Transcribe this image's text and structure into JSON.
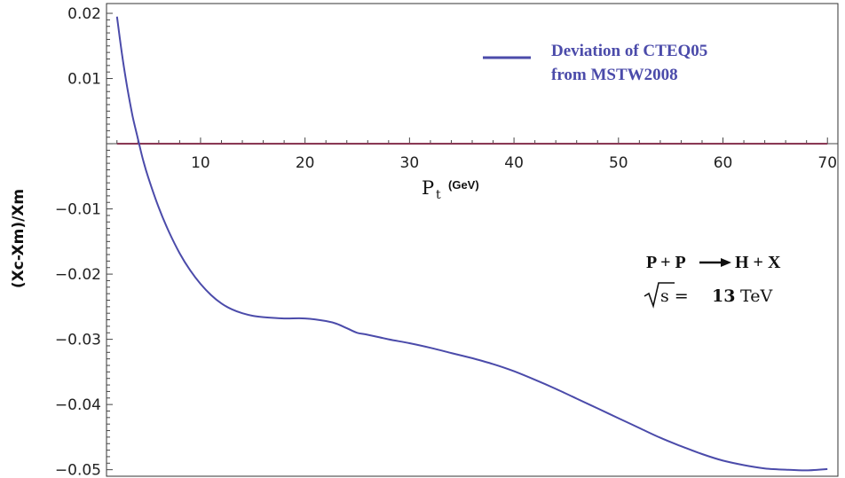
{
  "chart_data": {
    "type": "line",
    "ylabel": "(Xc-Xm)/Xm",
    "xlabel": "P",
    "xlabel_subscript": "t",
    "xlabel_unit": "(GeV)",
    "xlim": [
      1,
      71
    ],
    "ylim": [
      -0.051,
      0.0215
    ],
    "x_ticks": [
      10,
      20,
      30,
      40,
      50,
      60,
      70
    ],
    "x_tick_labels": [
      "10",
      "20",
      "30",
      "40",
      "50",
      "60",
      "70"
    ],
    "y_ticks": [
      0.02,
      0.01,
      -0.01,
      -0.02,
      -0.03,
      -0.04,
      -0.05
    ],
    "y_tick_labels": [
      "0.02",
      "0.01",
      "−0.01",
      "−0.02",
      "−0.03",
      "−0.04",
      "−0.05"
    ],
    "grid": false,
    "legend_position": "top-right",
    "legend_lines": [
      "Deviation of  CTEQ05",
      "from MSTW2008"
    ],
    "annotation": {
      "reaction_left": "P + P",
      "reaction_right": "H + X",
      "energy_prefix": "s = ",
      "energy_value": "13",
      "energy_unit": "TeV"
    },
    "reference_line": {
      "y": 0,
      "x_start": 2,
      "x_end": 70,
      "color": "#8b3a55"
    },
    "series": [
      {
        "name": "Deviation of  CTEQ05 from MSTW2008",
        "color": "#4b4baa",
        "x": [
          2,
          2.5,
          3,
          3.5,
          4,
          4.5,
          5,
          6,
          7,
          8,
          9,
          10,
          11,
          12,
          13,
          14,
          15,
          16,
          18,
          20,
          22,
          23,
          24,
          25,
          26,
          28,
          30,
          32,
          34,
          36,
          38,
          40,
          42,
          44,
          46,
          48,
          50,
          52,
          54,
          56,
          58,
          60,
          62,
          64,
          66,
          68,
          70
        ],
        "y": [
          0.0195,
          0.0135,
          0.0085,
          0.0042,
          0.0008,
          -0.0025,
          -0.0052,
          -0.0098,
          -0.0136,
          -0.0168,
          -0.0194,
          -0.0215,
          -0.0232,
          -0.0245,
          -0.0254,
          -0.026,
          -0.0264,
          -0.0266,
          -0.0268,
          -0.0268,
          -0.0272,
          -0.0276,
          -0.0283,
          -0.029,
          -0.0293,
          -0.03,
          -0.0306,
          -0.0313,
          -0.0321,
          -0.0329,
          -0.0338,
          -0.0349,
          -0.0362,
          -0.0376,
          -0.0391,
          -0.0406,
          -0.0421,
          -0.0436,
          -0.0451,
          -0.0464,
          -0.0476,
          -0.0486,
          -0.0493,
          -0.0498,
          -0.05,
          -0.0501,
          -0.0499
        ]
      }
    ]
  }
}
